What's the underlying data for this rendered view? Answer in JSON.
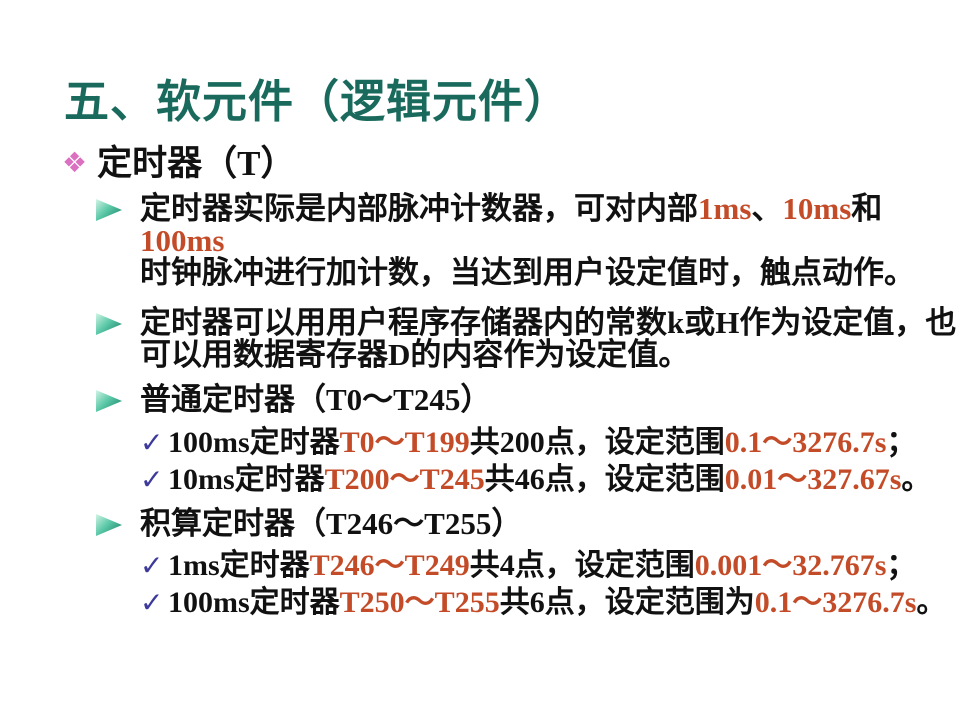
{
  "colors": {
    "background": "#ffffff",
    "title": "#196a5d",
    "body_text": "#111111",
    "highlight_red": "#c44b28",
    "checkmark_blue": "#3d3a9b",
    "diamond_pink": "#db6fc0",
    "arrow_teal_dark": "#117a61",
    "arrow_teal_light": "#d8f7e9"
  },
  "icons": {
    "diamond_glyph": "❖",
    "check_glyph": "✓",
    "arrow_bullet": "arrow-3d-right"
  },
  "slide": {
    "title": "五、软元件（逻辑元件）",
    "subheader": "定时器（T）"
  },
  "bullets": [
    {
      "lines": [
        [
          {
            "t": "定时器实际是内部脉冲计数器，可对内部"
          },
          {
            "t": "1ms",
            "c": "red"
          },
          {
            "t": "、"
          },
          {
            "t": "10ms",
            "c": "red"
          },
          {
            "t": "和"
          },
          {
            "t": "100ms",
            "c": "red"
          }
        ],
        [
          {
            "t": "时钟脉冲进行加计数，当达到用户设定值时，触点动作。"
          }
        ]
      ]
    },
    {
      "lines": [
        [
          {
            "t": "定时器可以用用户程序存储器内的常数k或H作为设定值，也"
          }
        ],
        [
          {
            "t": "可以用数据寄存器D的内容作为设定值。"
          }
        ]
      ]
    },
    {
      "lines": [
        [
          {
            "t": "普通定时器（T0～T245）"
          }
        ]
      ],
      "subitems": [
        [
          {
            "t": "100ms定时器"
          },
          {
            "t": "T0～T199",
            "c": "red"
          },
          {
            "t": "共200点，设定范围"
          },
          {
            "t": "0.1～3276.7s",
            "c": "red"
          },
          {
            "t": "；"
          }
        ],
        [
          {
            "t": "10ms定时器"
          },
          {
            "t": "T200～T245",
            "c": "red"
          },
          {
            "t": "共46点，设定范围"
          },
          {
            "t": "0.01～327.67s",
            "c": "red"
          },
          {
            "t": "。"
          }
        ]
      ]
    },
    {
      "lines": [
        [
          {
            "t": "积算定时器（T246～T255）"
          }
        ]
      ],
      "subitems": [
        [
          {
            "t": "1ms定时器"
          },
          {
            "t": "T246～T249",
            "c": "red"
          },
          {
            "t": "共4点，设定范围"
          },
          {
            "t": "0.001～32.767s",
            "c": "red"
          },
          {
            "t": "；"
          }
        ],
        [
          {
            "t": "100ms定时器"
          },
          {
            "t": "T250～T255",
            "c": "red"
          },
          {
            "t": "共6点，设定范围为"
          },
          {
            "t": "0.1～3276.7s",
            "c": "red"
          },
          {
            "t": "。"
          }
        ]
      ]
    }
  ]
}
